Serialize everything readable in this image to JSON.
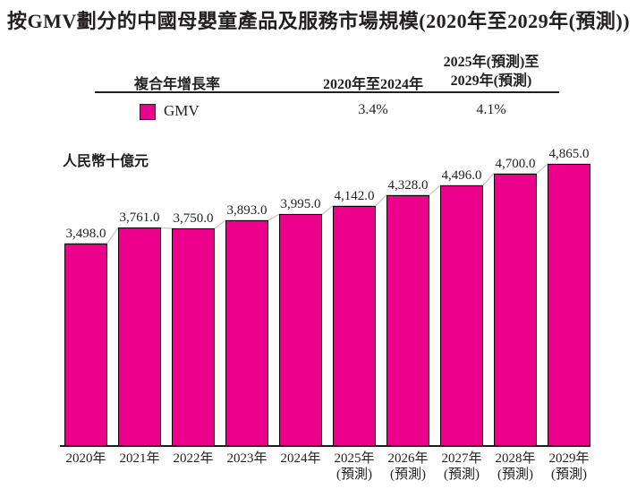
{
  "title": "按GMV劃分的中國母嬰童產品及服務市場規模(2020年至2029年(預測))",
  "legend_table": {
    "col1_header": "複合年增長率",
    "col2_header": "2020年至2024年",
    "col3_header_line1": "2025年(預測)至",
    "col3_header_line2": "2029年(預測)",
    "series_label": "GMV",
    "col2_value": "3.4%",
    "col3_value": "4.1%",
    "swatch_color": "#EC008C"
  },
  "chart_data": {
    "type": "bar",
    "title": "按GMV劃分的中國母嬰童產品及服務市場規模(2020年至2029年(預測))",
    "unit_label": "人民幣十億元",
    "ylabel": "人民幣十億元",
    "xlabel": "",
    "categories": [
      "2020年",
      "2021年",
      "2022年",
      "2023年",
      "2024年",
      "2025年",
      "2026年",
      "2027年",
      "2028年",
      "2029年"
    ],
    "category_notes": [
      "",
      "",
      "",
      "",
      "",
      "(預測)",
      "(預測)",
      "(預測)",
      "(預測)",
      "(預測)"
    ],
    "values": [
      3498.0,
      3761.0,
      3750.0,
      3893.0,
      3995.0,
      4142.0,
      4328.0,
      4496.0,
      4700.0,
      4865.0
    ],
    "value_labels": [
      "3,498.0",
      "3,761.0",
      "3,750.0",
      "3,893.0",
      "3,995.0",
      "4,142.0",
      "4,328.0",
      "4,496.0",
      "4,700.0",
      "4,865.0"
    ],
    "series": [
      {
        "name": "GMV",
        "values": [
          3498.0,
          3761.0,
          3750.0,
          3893.0,
          3995.0,
          4142.0,
          4328.0,
          4496.0,
          4700.0,
          4865.0
        ],
        "cagr_2020_2024": "3.4%",
        "cagr_2025_2029": "4.1%"
      }
    ],
    "bar_color": "#EC008C",
    "bar_border_color": "#000000",
    "connector_color": "#c6c6c6",
    "legend_position": "top",
    "grid": false,
    "ylim": [
      0,
      5000
    ]
  }
}
